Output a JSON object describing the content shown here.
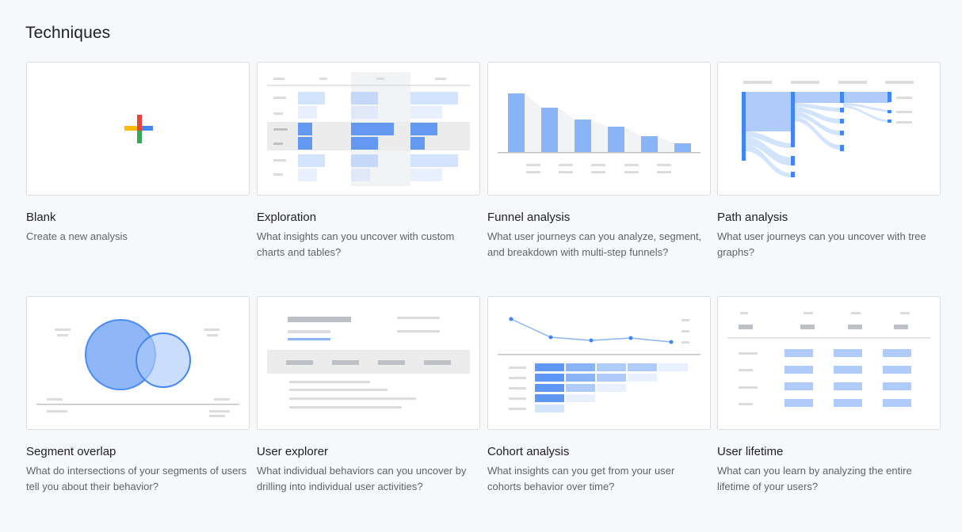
{
  "page": {
    "title": "Techniques"
  },
  "cards": [
    {
      "title": "Blank",
      "description": "Create a new analysis"
    },
    {
      "title": "Exploration",
      "description": "What insights can you uncover with custom charts and tables?"
    },
    {
      "title": "Funnel analysis",
      "description": "What user journeys can you analyze, segment, and breakdown with multi-step funnels?"
    },
    {
      "title": "Path analysis",
      "description": "What user journeys can you uncover with tree graphs?"
    },
    {
      "title": "Segment overlap",
      "description": "What do intersections of your segments of users tell you about their behavior?"
    },
    {
      "title": "User explorer",
      "description": "What individual behaviors can you uncover by drilling into individual user activities?"
    },
    {
      "title": "Cohort analysis",
      "description": "What insights can you get from your user cohorts behavior over time?"
    },
    {
      "title": "User lifetime",
      "description": "What can you learn by analyzing the entire lifetime of your users?"
    }
  ],
  "icons": {
    "blank": "plus-icon",
    "exploration": "table-illustration",
    "funnel": "funnel-illustration",
    "path": "tree-graph-illustration",
    "segment": "venn-illustration",
    "user_explorer": "user-list-illustration",
    "cohort": "cohort-illustration",
    "lifetime": "lifetime-table-illustration"
  },
  "colors": {
    "accent_blue": "#4285f4",
    "light_blue": "#aecbfa",
    "plus_red": "#ea4335",
    "plus_blue": "#4285f4",
    "plus_yellow": "#fbbc04",
    "plus_green": "#34a853"
  }
}
